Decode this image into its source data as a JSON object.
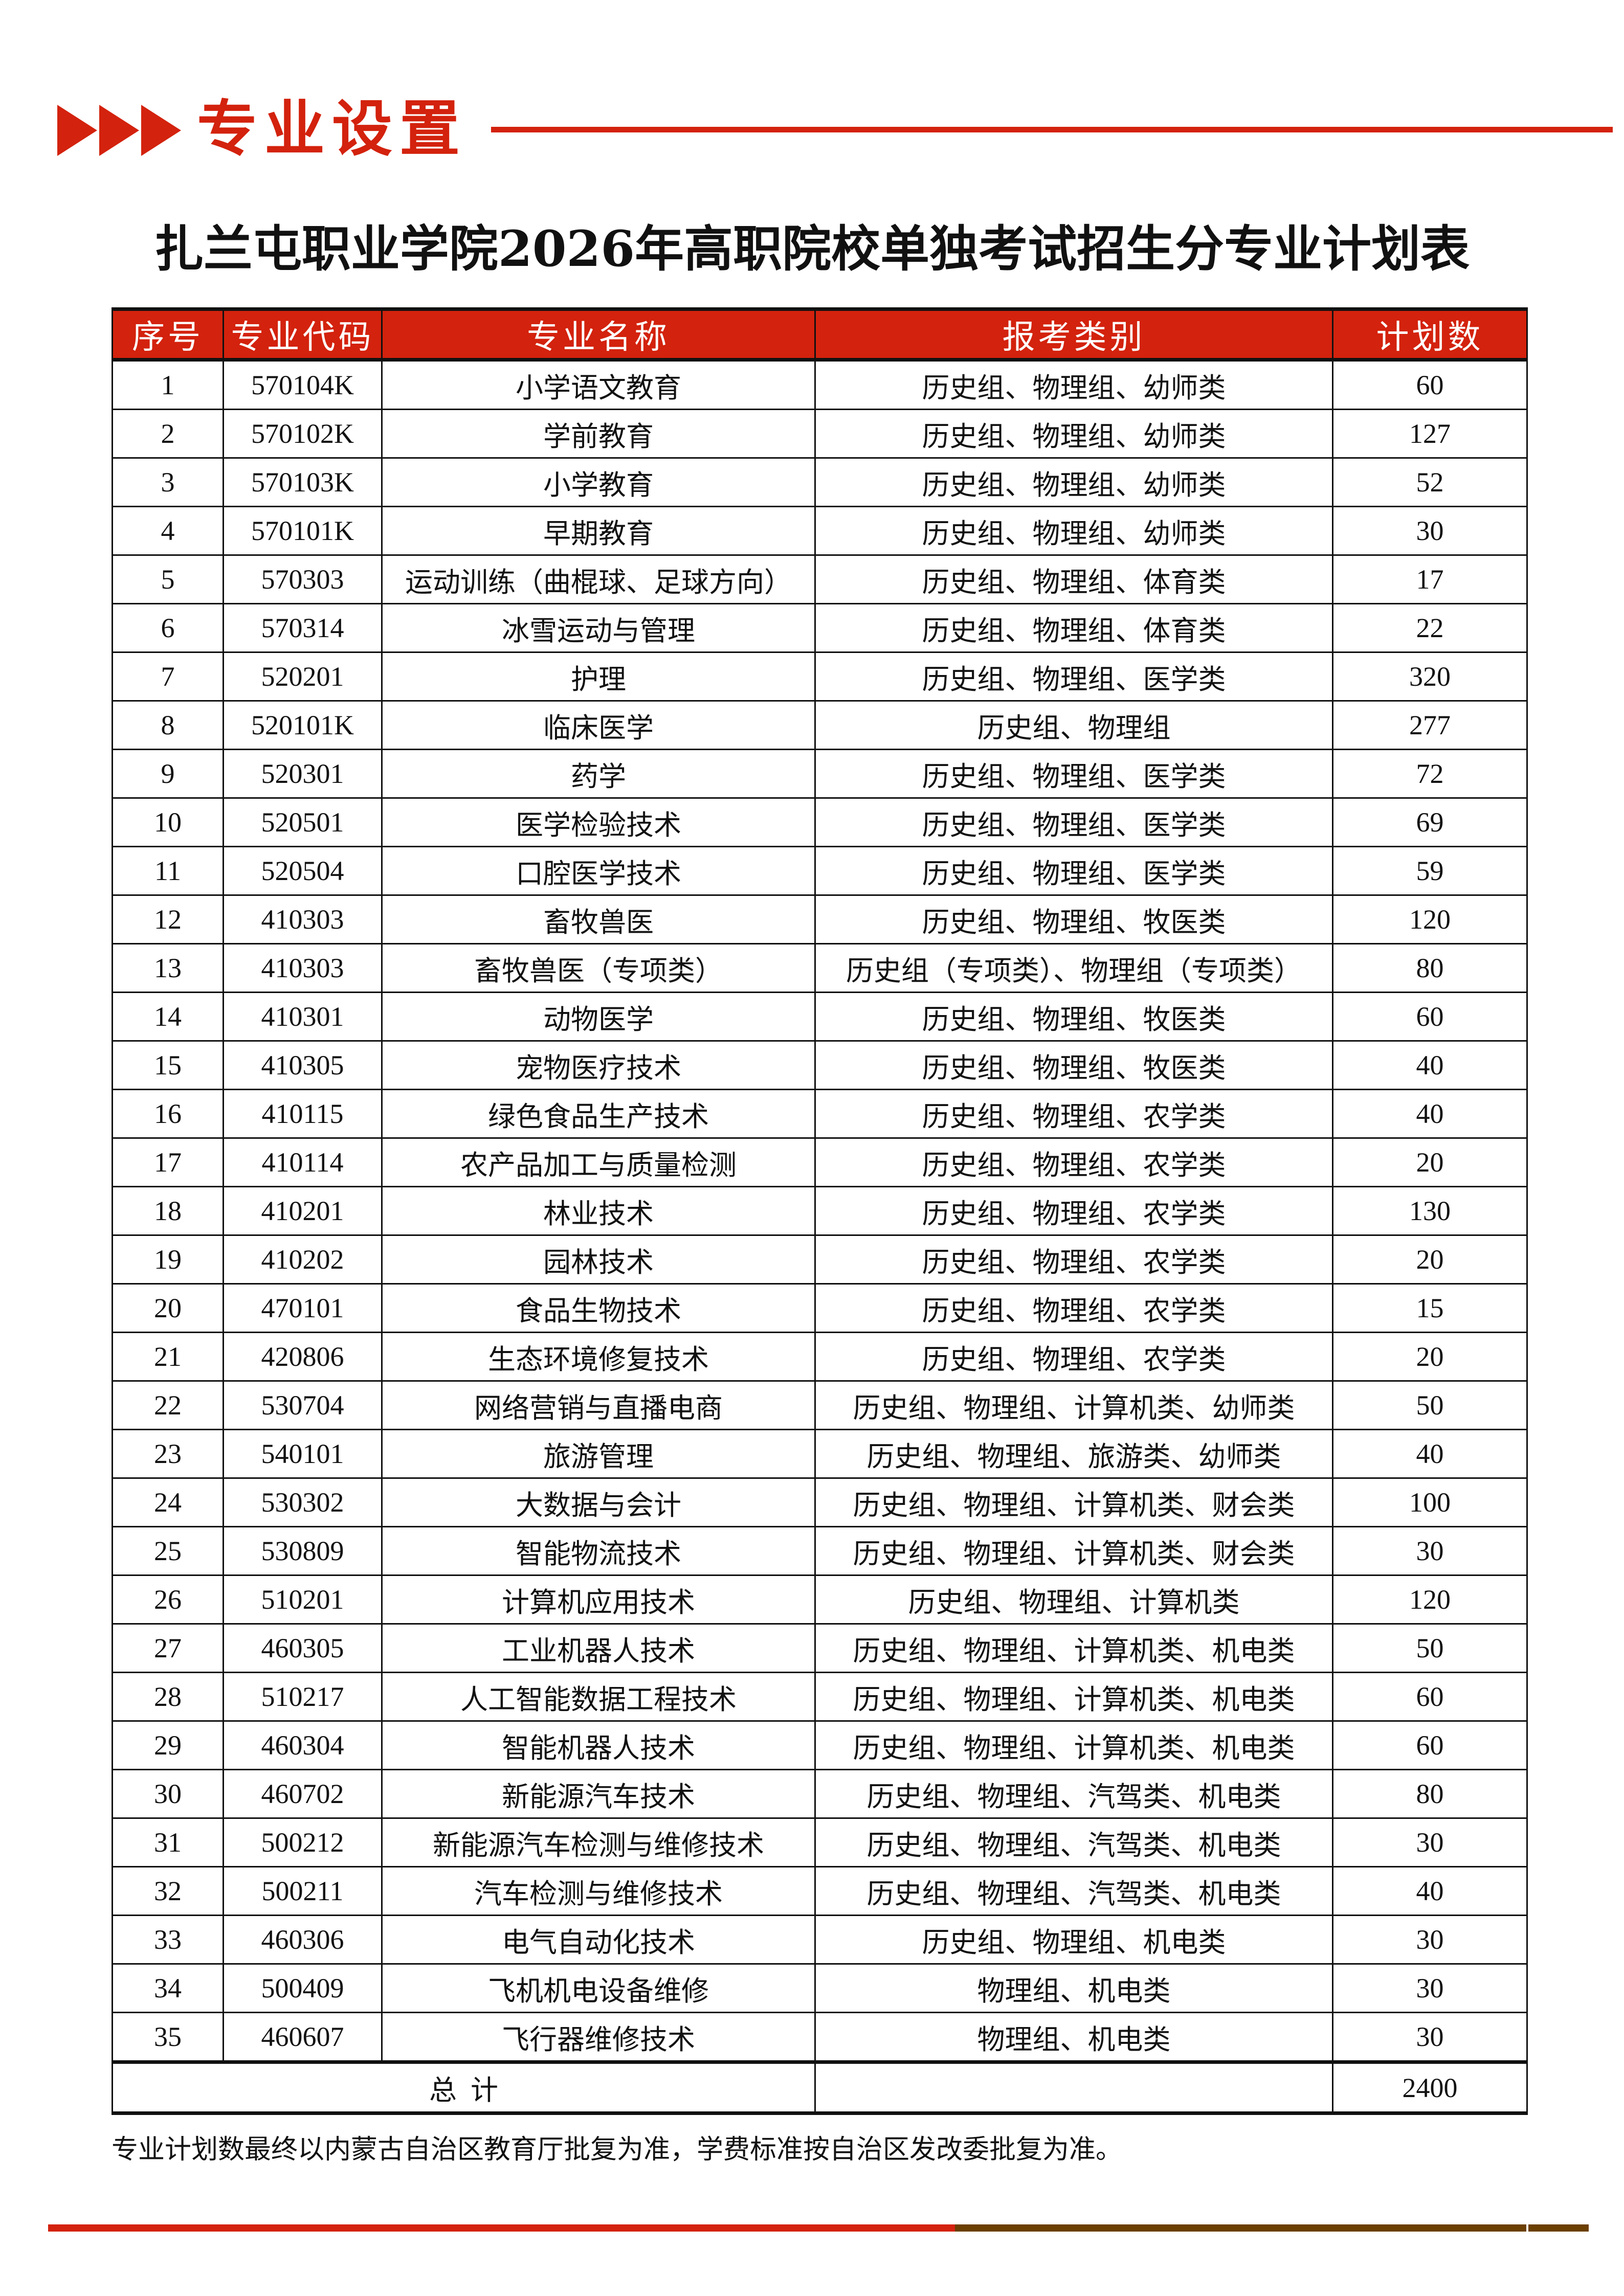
{
  "section_header": {
    "title": "专业设置",
    "color": "#d3220d"
  },
  "document_title": "扎兰屯职业学院2026年高职院校单独考试招生分专业计划表",
  "table": {
    "columns": [
      "序号",
      "专业代码",
      "专业名称",
      "报考类别",
      "计划数"
    ],
    "rows": [
      [
        "1",
        "570104K",
        "小学语文教育",
        "历史组、物理组、幼师类",
        "60"
      ],
      [
        "2",
        "570102K",
        "学前教育",
        "历史组、物理组、幼师类",
        "127"
      ],
      [
        "3",
        "570103K",
        "小学教育",
        "历史组、物理组、幼师类",
        "52"
      ],
      [
        "4",
        "570101K",
        "早期教育",
        "历史组、物理组、幼师类",
        "30"
      ],
      [
        "5",
        "570303",
        "运动训练（曲棍球、足球方向）",
        "历史组、物理组、体育类",
        "17"
      ],
      [
        "6",
        "570314",
        "冰雪运动与管理",
        "历史组、物理组、体育类",
        "22"
      ],
      [
        "7",
        "520201",
        "护理",
        "历史组、物理组、医学类",
        "320"
      ],
      [
        "8",
        "520101K",
        "临床医学",
        "历史组、物理组",
        "277"
      ],
      [
        "9",
        "520301",
        "药学",
        "历史组、物理组、医学类",
        "72"
      ],
      [
        "10",
        "520501",
        "医学检验技术",
        "历史组、物理组、医学类",
        "69"
      ],
      [
        "11",
        "520504",
        "口腔医学技术",
        "历史组、物理组、医学类",
        "59"
      ],
      [
        "12",
        "410303",
        "畜牧兽医",
        "历史组、物理组、牧医类",
        "120"
      ],
      [
        "13",
        "410303",
        "畜牧兽医（专项类）",
        "历史组（专项类）、物理组（专项类）",
        "80"
      ],
      [
        "14",
        "410301",
        "动物医学",
        "历史组、物理组、牧医类",
        "60"
      ],
      [
        "15",
        "410305",
        "宠物医疗技术",
        "历史组、物理组、牧医类",
        "40"
      ],
      [
        "16",
        "410115",
        "绿色食品生产技术",
        "历史组、物理组、农学类",
        "40"
      ],
      [
        "17",
        "410114",
        "农产品加工与质量检测",
        "历史组、物理组、农学类",
        "20"
      ],
      [
        "18",
        "410201",
        "林业技术",
        "历史组、物理组、农学类",
        "130"
      ],
      [
        "19",
        "410202",
        "园林技术",
        "历史组、物理组、农学类",
        "20"
      ],
      [
        "20",
        "470101",
        "食品生物技术",
        "历史组、物理组、农学类",
        "15"
      ],
      [
        "21",
        "420806",
        "生态环境修复技术",
        "历史组、物理组、农学类",
        "20"
      ],
      [
        "22",
        "530704",
        "网络营销与直播电商",
        "历史组、物理组、计算机类、幼师类",
        "50"
      ],
      [
        "23",
        "540101",
        "旅游管理",
        "历史组、物理组、旅游类、幼师类",
        "40"
      ],
      [
        "24",
        "530302",
        "大数据与会计",
        "历史组、物理组、计算机类、财会类",
        "100"
      ],
      [
        "25",
        "530809",
        "智能物流技术",
        "历史组、物理组、计算机类、财会类",
        "30"
      ],
      [
        "26",
        "510201",
        "计算机应用技术",
        "历史组、物理组、计算机类",
        "120"
      ],
      [
        "27",
        "460305",
        "工业机器人技术",
        "历史组、物理组、计算机类、机电类",
        "50"
      ],
      [
        "28",
        "510217",
        "人工智能数据工程技术",
        "历史组、物理组、计算机类、机电类",
        "60"
      ],
      [
        "29",
        "460304",
        "智能机器人技术",
        "历史组、物理组、计算机类、机电类",
        "60"
      ],
      [
        "30",
        "460702",
        "新能源汽车技术",
        "历史组、物理组、汽驾类、机电类",
        "80"
      ],
      [
        "31",
        "500212",
        "新能源汽车检测与维修技术",
        "历史组、物理组、汽驾类、机电类",
        "30"
      ],
      [
        "32",
        "500211",
        "汽车检测与维修技术",
        "历史组、物理组、汽驾类、机电类",
        "40"
      ],
      [
        "33",
        "460306",
        "电气自动化技术",
        "历史组、物理组、机电类",
        "30"
      ],
      [
        "34",
        "500409",
        "飞机机电设备维修",
        "物理组、机电类",
        "30"
      ],
      [
        "35",
        "460607",
        "飞行器维修技术",
        "物理组、机电类",
        "30"
      ]
    ],
    "total_label": "总  计",
    "total_value": "2400",
    "header_color": "#d3220d"
  },
  "footnote": "专业计划数最终以内蒙古自治区教育厅批复为准，学费标准按自治区发改委批复为准。",
  "footer_colors": [
    "#d3220d",
    "#6b3f00"
  ]
}
